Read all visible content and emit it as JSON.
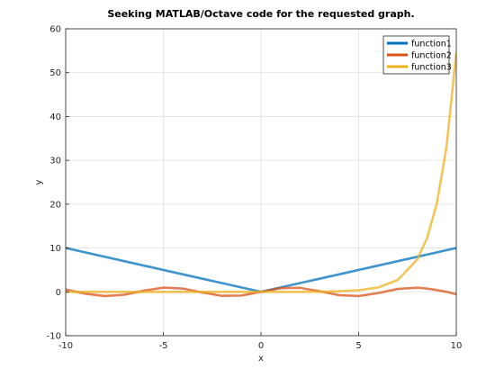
{
  "chart_data": {
    "type": "line",
    "title": "Seeking MATLAB/Octave code for the requested graph.",
    "xlabel": "x",
    "ylabel": "y",
    "xlim": [
      -10,
      10
    ],
    "ylim": [
      -10,
      60
    ],
    "xticks": [
      -10,
      -5,
      0,
      5,
      10
    ],
    "yticks": [
      -10,
      0,
      10,
      20,
      30,
      40,
      50,
      60
    ],
    "xtick_labels": [
      "-10",
      "-5",
      "0",
      "5",
      "10"
    ],
    "ytick_labels": [
      "-10",
      "0",
      "10",
      "20",
      "30",
      "40",
      "50",
      "60"
    ],
    "grid": true,
    "legend_position": "top-right",
    "x": [
      -10,
      -9,
      -8,
      -7,
      -6,
      -5,
      -4,
      -3,
      -2,
      -1,
      0,
      1,
      2,
      3,
      4,
      5,
      6,
      7,
      8,
      8.5,
      9,
      9.5,
      10
    ],
    "series": [
      {
        "name": "function1",
        "color": "#0072BD",
        "values": [
          10,
          9,
          8,
          7,
          6,
          5,
          4,
          3,
          2,
          1,
          0,
          1,
          2,
          3,
          4,
          5,
          6,
          7,
          8,
          8.5,
          9,
          9.5,
          10
        ]
      },
      {
        "name": "function2",
        "color": "#D95319",
        "values": [
          0.54,
          -0.41,
          -0.96,
          -0.66,
          0.28,
          0.96,
          0.75,
          -0.14,
          -0.91,
          -0.84,
          0,
          0.84,
          0.91,
          0.14,
          -0.75,
          -0.96,
          -0.28,
          0.66,
          0.96,
          0.75,
          0.41,
          0,
          -0.54
        ]
      },
      {
        "name": "function3",
        "color": "#EDB120",
        "values": [
          0,
          0,
          0,
          0,
          0,
          0,
          0,
          0,
          0,
          0,
          0,
          0,
          0,
          0.02,
          0.15,
          0.37,
          1.0,
          2.7,
          7.4,
          12.2,
          20.1,
          33.1,
          54.6
        ]
      }
    ]
  }
}
